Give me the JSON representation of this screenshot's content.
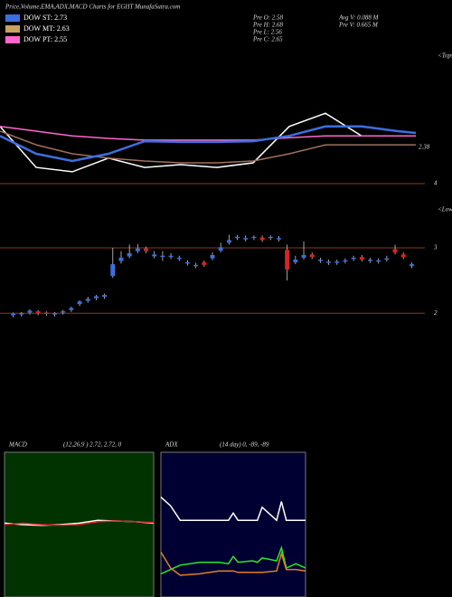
{
  "header": {
    "title": "Price,Volume,EMA,ADX,MACD Charts for EGHT MunafaSutra.com",
    "legend": [
      {
        "label": "DOW ST: 2.73",
        "color": "#3b6fe0"
      },
      {
        "label": "DOW MT: 2.63",
        "color": "#c8a060"
      },
      {
        "label": "DOW PT: 2.55",
        "color": "#ff66cc"
      }
    ],
    "info": [
      "Pre O: 2.58",
      "Pre H: 2.68",
      "Pre L: 2.56",
      "Pre C: 2.65",
      "Avg V: 0.088 M",
      "Pre V: 0.665 M"
    ]
  },
  "chart_data": [
    {
      "type": "line",
      "label": "<Tops",
      "price_label": "2.38",
      "ylim": [
        3.95,
        7.6
      ],
      "yticks": [
        4
      ],
      "x": [
        0,
        40,
        80,
        120,
        160,
        200,
        240,
        280,
        320,
        360,
        400,
        440,
        460
      ],
      "series": [
        {
          "name": "price",
          "color": "#ffffff",
          "values": [
            5.59,
            4.45,
            4.33,
            4.71,
            4.45,
            4.53,
            4.45,
            4.58,
            5.59,
            5.96,
            5.33,
            5.33,
            5.33
          ]
        },
        {
          "name": "ema-long",
          "color": "#a0705a",
          "values": [
            5.46,
            5.08,
            4.83,
            4.71,
            4.63,
            4.58,
            4.58,
            4.63,
            4.83,
            5.08,
            5.08,
            5.08,
            5.08
          ]
        },
        {
          "name": "ema-pt",
          "color": "#ff66cc",
          "values": [
            5.59,
            5.46,
            5.33,
            5.26,
            5.21,
            5.21,
            5.21,
            5.21,
            5.28,
            5.33,
            5.33,
            5.33,
            5.33
          ]
        },
        {
          "name": "ema-st",
          "color": "#3b6fe0",
          "values": [
            5.33,
            4.83,
            4.63,
            4.83,
            5.18,
            5.16,
            5.16,
            5.18,
            5.33,
            5.59,
            5.59,
            5.46,
            5.41
          ]
        }
      ]
    },
    {
      "type": "candlestick",
      "label": "<Lows",
      "ylim": [
        1.81,
        3.61
      ],
      "yticks": [
        3,
        2
      ],
      "up_color": "#3b6fe0",
      "down_color": "#e02020",
      "open": [
        1.97,
        1.98,
        2.01,
        2.03,
        2.01,
        1.98,
        2.01,
        2.05,
        2.14,
        2.19,
        2.23,
        2.25,
        2.57,
        2.8,
        2.87,
        2.95,
        2.99,
        2.87,
        2.86,
        2.86,
        2.83,
        2.76,
        2.72,
        2.78,
        2.84,
        2.96,
        3.08,
        3.15,
        3.13,
        3.15,
        3.16,
        3.15,
        3.13,
        2.97,
        2.78,
        2.85,
        2.9,
        2.8,
        2.77,
        2.77,
        2.79,
        2.83,
        2.86,
        2.8,
        2.79,
        2.82,
        2.98,
        2.9,
        2.72
      ],
      "high": [
        2.01,
        2.02,
        2.06,
        2.05,
        2.03,
        2.02,
        2.05,
        2.1,
        2.2,
        2.25,
        2.28,
        2.3,
        3.0,
        2.95,
        3.05,
        3.06,
        3.02,
        2.95,
        2.95,
        2.92,
        2.88,
        2.81,
        2.77,
        2.81,
        2.93,
        3.08,
        3.2,
        3.2,
        3.19,
        3.19,
        3.19,
        3.19,
        3.18,
        3.05,
        2.88,
        3.1,
        2.93,
        2.85,
        2.82,
        2.82,
        2.84,
        2.88,
        2.89,
        2.85,
        2.84,
        2.88,
        3.05,
        2.93,
        2.78
      ],
      "low": [
        1.94,
        1.95,
        1.98,
        1.97,
        1.96,
        1.95,
        1.98,
        2.02,
        2.11,
        2.16,
        2.2,
        2.22,
        2.54,
        2.76,
        2.84,
        2.92,
        2.92,
        2.84,
        2.8,
        2.83,
        2.8,
        2.73,
        2.69,
        2.71,
        2.81,
        2.93,
        3.05,
        3.12,
        3.1,
        3.12,
        3.09,
        3.12,
        3.1,
        2.5,
        2.75,
        2.82,
        2.83,
        2.77,
        2.74,
        2.74,
        2.76,
        2.8,
        2.79,
        2.77,
        2.76,
        2.79,
        2.9,
        2.83,
        2.69
      ],
      "close": [
        1.99,
        2.0,
        2.04,
        2.0,
        1.99,
        2.0,
        2.03,
        2.08,
        2.18,
        2.22,
        2.26,
        2.28,
        2.75,
        2.85,
        2.92,
        2.99,
        2.95,
        2.9,
        2.88,
        2.88,
        2.85,
        2.78,
        2.74,
        2.74,
        2.89,
        3.01,
        3.12,
        3.17,
        3.15,
        3.17,
        3.12,
        3.17,
        3.15,
        2.67,
        2.82,
        2.89,
        2.86,
        2.82,
        2.79,
        2.79,
        2.81,
        2.85,
        2.82,
        2.82,
        2.81,
        2.84,
        2.93,
        2.86,
        2.75
      ]
    },
    {
      "type": "line",
      "title": "MACD",
      "subtitle": "(12,26,9 ) 2.72, 2.72, 0",
      "ylim": [
        -1,
        1
      ],
      "x": [
        0,
        20,
        40,
        60,
        80,
        100,
        120,
        140,
        160
      ],
      "series": [
        {
          "name": "macd",
          "color": "#ffffff",
          "values": [
            0.02,
            0.0,
            -0.01,
            0.0,
            0.02,
            0.06,
            0.05,
            0.04,
            0.02
          ]
        },
        {
          "name": "signal",
          "color": "#e02020",
          "values": [
            0.0,
            0.02,
            0.0,
            -0.01,
            0.0,
            0.04,
            0.05,
            0.04,
            0.03
          ]
        }
      ]
    },
    {
      "type": "line",
      "title": "ADX",
      "subtitle": "(14 day) 0, -89, -89",
      "ylim": [
        0,
        100
      ],
      "x": [
        0,
        10,
        20,
        40,
        60,
        70,
        75,
        80,
        95,
        100,
        105,
        120,
        125,
        130,
        140,
        150
      ],
      "series": [
        {
          "name": "adx",
          "color": "#ffffff",
          "values": [
            69,
            63,
            53,
            53,
            53,
            53,
            58,
            53,
            53,
            53,
            62,
            53,
            66,
            53,
            53,
            53
          ]
        },
        {
          "name": "plus-di",
          "color": "#22ee22",
          "values": [
            16,
            19,
            22,
            24,
            24,
            23,
            28,
            24,
            25,
            24,
            27,
            25,
            34,
            20,
            23,
            20
          ]
        },
        {
          "name": "minus-di",
          "color": "#e08020",
          "values": [
            31,
            20,
            15,
            16,
            18,
            18,
            18,
            17,
            17,
            17,
            17,
            18,
            30,
            19,
            19,
            18
          ]
        }
      ]
    }
  ]
}
